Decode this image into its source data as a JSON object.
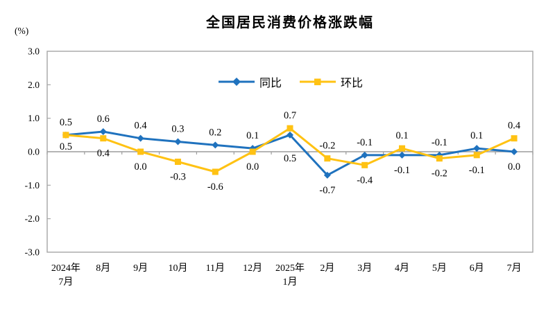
{
  "chart_data": {
    "type": "line",
    "title": "全国居民消费价格涨跌幅",
    "ylabel": "(%)",
    "xlabel": "",
    "categories": [
      [
        "2024年",
        "7月"
      ],
      "8月",
      "9月",
      "10月",
      "11月",
      "12月",
      [
        "2025年",
        "1月"
      ],
      "2月",
      "3月",
      "4月",
      "5月",
      "6月",
      "7月"
    ],
    "series": [
      {
        "name": "同比",
        "color": "#1F72BE",
        "marker": "diamond",
        "values": [
          0.5,
          0.6,
          0.4,
          0.3,
          0.2,
          0.1,
          0.5,
          -0.7,
          -0.1,
          -0.1,
          -0.1,
          0.1,
          0.0
        ]
      },
      {
        "name": "环比",
        "color": "#FFC213",
        "marker": "square",
        "values": [
          0.5,
          0.4,
          0.0,
          -0.3,
          -0.6,
          0.0,
          0.7,
          -0.2,
          -0.4,
          0.1,
          -0.2,
          -0.1,
          0.4
        ]
      }
    ],
    "ylim": [
      -3.0,
      3.0
    ],
    "yticks": [
      3.0,
      2.0,
      1.0,
      0.0,
      -1.0,
      -2.0,
      -3.0
    ],
    "data_labels": true,
    "grid": false,
    "legend_position": "top-center-inside",
    "axis_color": "#A6A6A6",
    "zero_line_color": "#9C9C9C",
    "text_color": "#000000"
  }
}
